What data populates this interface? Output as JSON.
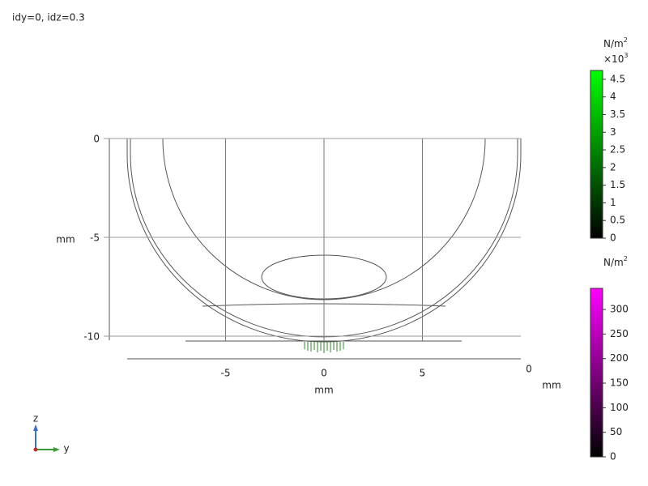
{
  "title": "idy=0, idz=0.3",
  "plot": {
    "x_axis": {
      "unit": "mm",
      "lim": [
        -10,
        10
      ],
      "ticks": [
        -5,
        0,
        5
      ]
    },
    "y_axis": {
      "unit": "mm",
      "lim": [
        -10.5,
        0
      ],
      "ticks": [
        0,
        -5,
        -10
      ]
    },
    "depth_axis": {
      "unit": "mm",
      "ticks": [
        0
      ]
    }
  },
  "colorbars": [
    {
      "unit": "N/m",
      "unit_exp": "2",
      "multiplier": "×10",
      "multiplier_exp": "3",
      "lim": [
        0,
        4.75
      ],
      "ticks": [
        0,
        0.5,
        1,
        1.5,
        2,
        2.5,
        3,
        3.5,
        4,
        4.5
      ],
      "color_low": "#000000",
      "color_high": "#00ff00"
    },
    {
      "unit": "N/m",
      "unit_exp": "2",
      "lim": [
        0,
        343
      ],
      "ticks": [
        0,
        50,
        100,
        150,
        200,
        250,
        300
      ],
      "color_low": "#000000",
      "color_high": "#ff00ff"
    }
  ],
  "triad": {
    "z": "z",
    "y": "y"
  }
}
